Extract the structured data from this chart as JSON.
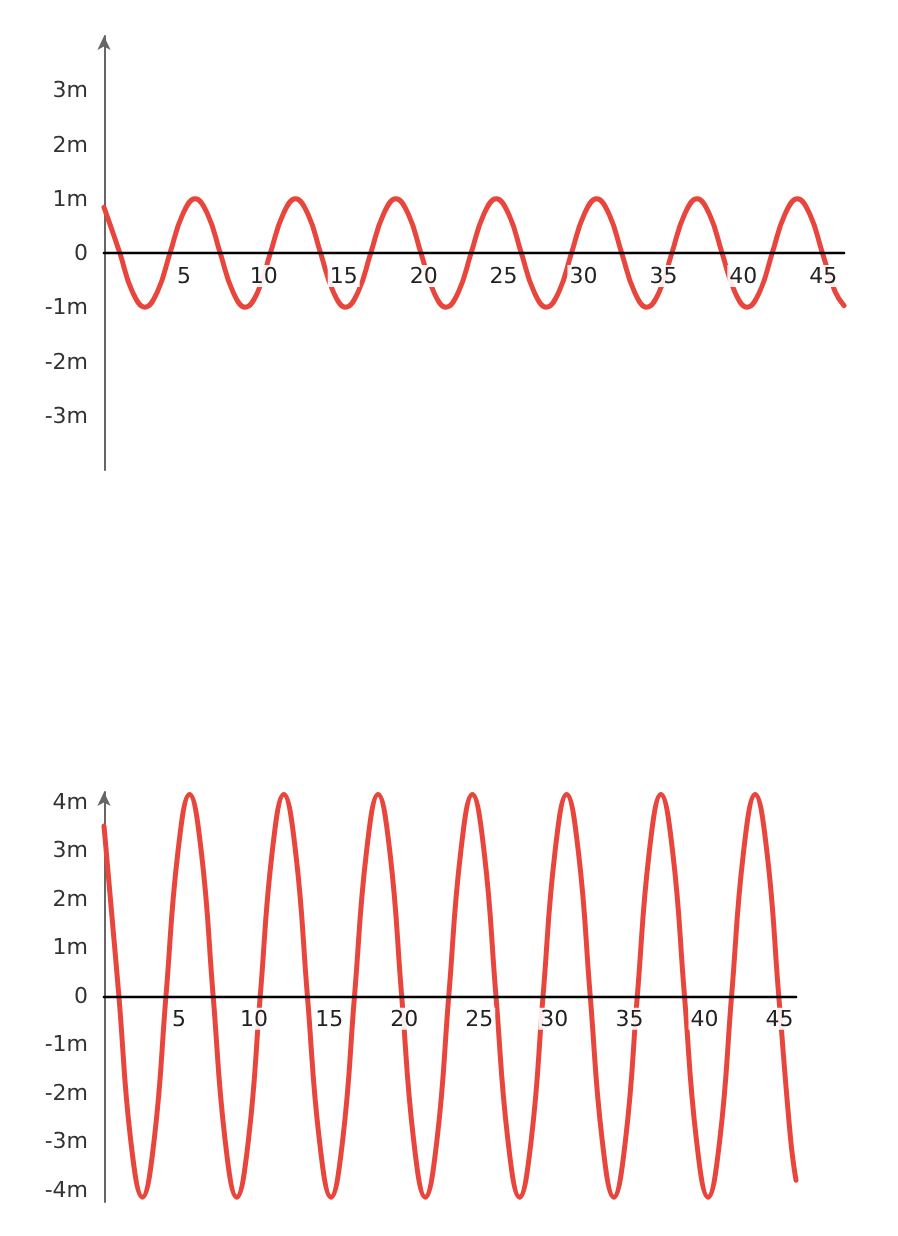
{
  "chart_data": [
    {
      "type": "line",
      "marker": "none",
      "line_style": "solid",
      "grid": false,
      "xlim": [
        0,
        46.3
      ],
      "xticks": [
        5,
        10,
        15,
        20,
        25,
        30,
        35,
        40,
        45
      ],
      "ylim": [
        -4,
        4
      ],
      "yticks": [
        {
          "value": -3,
          "label": "-3m"
        },
        {
          "value": -2,
          "label": "-2m"
        },
        {
          "value": -1,
          "label": "-1m"
        },
        0,
        {
          "value": 1,
          "label": "1m"
        },
        {
          "value": 2,
          "label": "2m"
        },
        {
          "value": 3,
          "label": "3m"
        }
      ],
      "series": [
        {
          "color": "#e8453c",
          "x": [
            0,
            0.99,
            1.77,
            2.56,
            3.35,
            4.13,
            4.92,
            5.7,
            6.49,
            7.27,
            8.06,
            8.84,
            9.63,
            10.41,
            11.2,
            11.98,
            12.77,
            13.55,
            14.34,
            15.12,
            15.91,
            16.69,
            17.48,
            18.26,
            19.05,
            19.83,
            20.62,
            21.4,
            22.19,
            22.97,
            23.76,
            24.54,
            25.33,
            26.11,
            26.9,
            27.68,
            28.47,
            29.25,
            30.04,
            30.82,
            31.61,
            32.39,
            33.18,
            33.96,
            34.75,
            35.53,
            36.32,
            37.1,
            37.89,
            38.67,
            39.46,
            40.24,
            41.03,
            41.81,
            42.6,
            43.38,
            44.17,
            44.95,
            45.74,
            46.3
          ],
          "values": [
            0.84,
            0,
            -0.71,
            -1,
            -0.71,
            0,
            0.71,
            1,
            0.71,
            0,
            -0.71,
            -1,
            -0.71,
            0,
            0.71,
            1,
            0.71,
            0,
            -0.71,
            -1,
            -0.71,
            0,
            0.71,
            1,
            0.71,
            0,
            -0.71,
            -1,
            -0.71,
            0,
            0.71,
            1,
            0.71,
            0,
            -0.71,
            -1,
            -0.71,
            0,
            0.71,
            1,
            0.71,
            0,
            -0.71,
            -1,
            -0.71,
            0,
            0.71,
            1,
            0.71,
            0,
            -0.71,
            -1,
            -0.71,
            0,
            0.71,
            1,
            0.71,
            0,
            -0.71,
            -0.97
          ]
        }
      ]
    },
    {
      "type": "line",
      "marker": "none",
      "line_style": "solid",
      "grid": false,
      "xlim": [
        0,
        46.1
      ],
      "xticks": [
        5,
        10,
        15,
        20,
        25,
        30,
        35,
        40,
        45
      ],
      "ylim": [
        -4.25,
        4.2
      ],
      "yticks": [
        {
          "value": -4,
          "label": "-4m"
        },
        {
          "value": -3,
          "label": "-3m"
        },
        {
          "value": -2,
          "label": "-2m"
        },
        {
          "value": -1,
          "label": "-1m"
        },
        0,
        {
          "value": 1,
          "label": "1m"
        },
        {
          "value": 2,
          "label": "2m"
        },
        {
          "value": 3,
          "label": "3m"
        },
        {
          "value": 4,
          "label": "4m"
        }
      ],
      "series": [
        {
          "color": "#e8453c",
          "x": [
            0,
            0.99,
            1.77,
            2.56,
            3.35,
            4.13,
            4.92,
            5.7,
            6.49,
            7.27,
            8.06,
            8.84,
            9.63,
            10.41,
            11.2,
            11.98,
            12.77,
            13.55,
            14.34,
            15.12,
            15.91,
            16.69,
            17.48,
            18.26,
            19.05,
            19.83,
            20.62,
            21.4,
            22.19,
            22.97,
            23.76,
            24.54,
            25.33,
            26.11,
            26.9,
            27.68,
            28.47,
            29.25,
            30.04,
            30.82,
            31.61,
            32.39,
            33.18,
            33.96,
            34.75,
            35.53,
            36.32,
            37.1,
            37.89,
            38.67,
            39.46,
            40.24,
            41.03,
            41.81,
            42.6,
            43.38,
            44.17,
            44.95,
            45.74,
            46.1
          ],
          "values": [
            3.5,
            0,
            -2.95,
            -4.15,
            -2.95,
            0,
            2.95,
            4.15,
            2.95,
            0,
            -2.95,
            -4.15,
            -2.95,
            0,
            2.95,
            4.15,
            2.95,
            0,
            -2.95,
            -4.15,
            -2.95,
            0,
            2.95,
            4.15,
            2.95,
            0,
            -2.95,
            -4.15,
            -2.95,
            0,
            2.95,
            4.15,
            2.95,
            0,
            -2.95,
            -4.15,
            -2.95,
            0,
            2.95,
            4.15,
            2.95,
            0,
            -2.95,
            -4.15,
            -2.95,
            0,
            2.95,
            4.15,
            2.95,
            0,
            -2.95,
            -4.15,
            -2.95,
            0,
            2.95,
            4.15,
            2.95,
            0,
            -2.95,
            -3.8
          ]
        }
      ]
    }
  ]
}
